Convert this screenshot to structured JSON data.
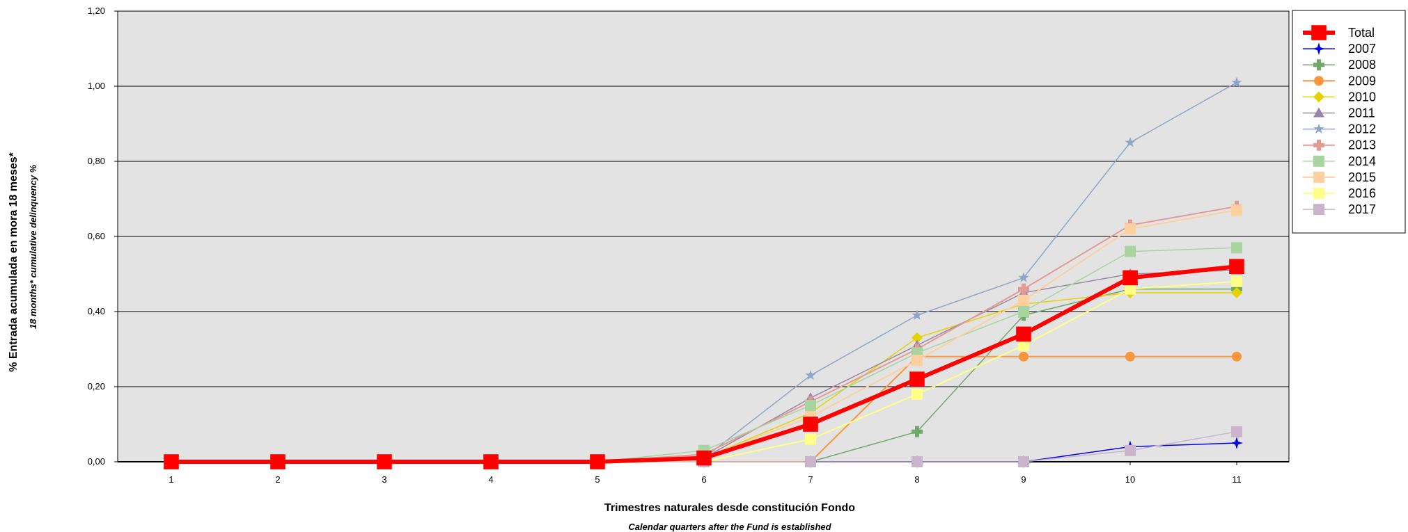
{
  "chart_data": {
    "type": "line",
    "xlabel": "Trimestres naturales desde constitución Fondo",
    "xlabel_sub": "Calendar quarters after the Fund is established",
    "ylabel": "% Entrada acumulada en mora 18 meses*",
    "ylabel_sub": "18 months* cumulative delinquency %",
    "x": [
      1,
      2,
      3,
      4,
      5,
      6,
      7,
      8,
      9,
      10,
      11
    ],
    "x_tick_labels": [
      "1",
      "2",
      "3",
      "4",
      "5",
      "6",
      "7",
      "8",
      "9",
      "10",
      "11"
    ],
    "ylim": [
      0,
      1.2
    ],
    "y_ticks": [
      0,
      0.2,
      0.4,
      0.6,
      0.8,
      1.0,
      1.2
    ],
    "y_tick_labels": [
      "0,00",
      "0,20",
      "0,40",
      "0,60",
      "0,80",
      "1,00",
      "1,20"
    ],
    "grid": "horizontal",
    "plot_background": "#e3e3e3",
    "legend_position": "right",
    "series": [
      {
        "name": "2007",
        "color": "#0000ee",
        "marker": "star4",
        "width": 1.5,
        "values": [
          0,
          0,
          0,
          0,
          0,
          0,
          0,
          0,
          0,
          0.04,
          0.05
        ]
      },
      {
        "name": "2008",
        "color": "#6fa86a",
        "marker": "plus",
        "width": 1.5,
        "values": [
          0,
          0,
          0,
          0,
          0,
          0,
          0,
          0.08,
          0.39,
          0.46,
          0.46
        ]
      },
      {
        "name": "2009",
        "color": "#f7963b",
        "marker": "circle",
        "width": 2,
        "values": [
          0,
          0,
          0,
          0,
          0,
          0,
          0,
          0.28,
          0.28,
          0.28,
          0.28
        ]
      },
      {
        "name": "2010",
        "color": "#e6d200",
        "marker": "diamond",
        "width": 1.5,
        "values": [
          0,
          0,
          0,
          0,
          0,
          0.01,
          0.13,
          0.33,
          0.42,
          0.45,
          0.45
        ]
      },
      {
        "name": "2011",
        "color": "#9a86a6",
        "marker": "triangle",
        "width": 1.5,
        "values": [
          0,
          0,
          0,
          0,
          0,
          0.01,
          0.17,
          0.31,
          0.45,
          0.5,
          0.51
        ]
      },
      {
        "name": "2012",
        "color": "#8ea4c8",
        "marker": "star5",
        "width": 1.5,
        "values": [
          0,
          0,
          0,
          0,
          0,
          0.01,
          0.23,
          0.39,
          0.49,
          0.85,
          1.01
        ]
      },
      {
        "name": "2013",
        "color": "#e39a92",
        "marker": "plus",
        "width": 2,
        "values": [
          0,
          0,
          0,
          0,
          0,
          0.02,
          0.16,
          0.3,
          0.46,
          0.63,
          0.68
        ]
      },
      {
        "name": "2014",
        "color": "#a8d4a0",
        "marker": "square",
        "width": 1.5,
        "values": [
          0,
          0,
          0,
          0,
          0,
          0.03,
          0.15,
          0.29,
          0.4,
          0.56,
          0.57
        ]
      },
      {
        "name": "2015",
        "color": "#ffcf9f",
        "marker": "square",
        "width": 2,
        "values": [
          0,
          0,
          0,
          0,
          0,
          0.01,
          0.12,
          0.27,
          0.43,
          0.62,
          0.67
        ]
      },
      {
        "name": "2016",
        "color": "#ffff88",
        "marker": "square",
        "width": 2,
        "values": [
          0,
          0,
          0,
          0,
          0,
          0,
          0.06,
          0.18,
          0.31,
          0.46,
          0.48
        ]
      },
      {
        "name": "2017",
        "color": "#c9b4cc",
        "marker": "square",
        "width": 1.5,
        "values": [
          0,
          0,
          0,
          0,
          0,
          0,
          0,
          0,
          0,
          0.03,
          0.08
        ]
      },
      {
        "name": "Total",
        "color": "#ff0000",
        "marker": "square",
        "width": 6,
        "values": [
          0,
          0,
          0,
          0,
          0,
          0.01,
          0.1,
          0.22,
          0.34,
          0.49,
          0.52
        ]
      }
    ],
    "legend_order": [
      "Total",
      "2007",
      "2008",
      "2009",
      "2010",
      "2011",
      "2012",
      "2013",
      "2014",
      "2015",
      "2016",
      "2017"
    ]
  }
}
